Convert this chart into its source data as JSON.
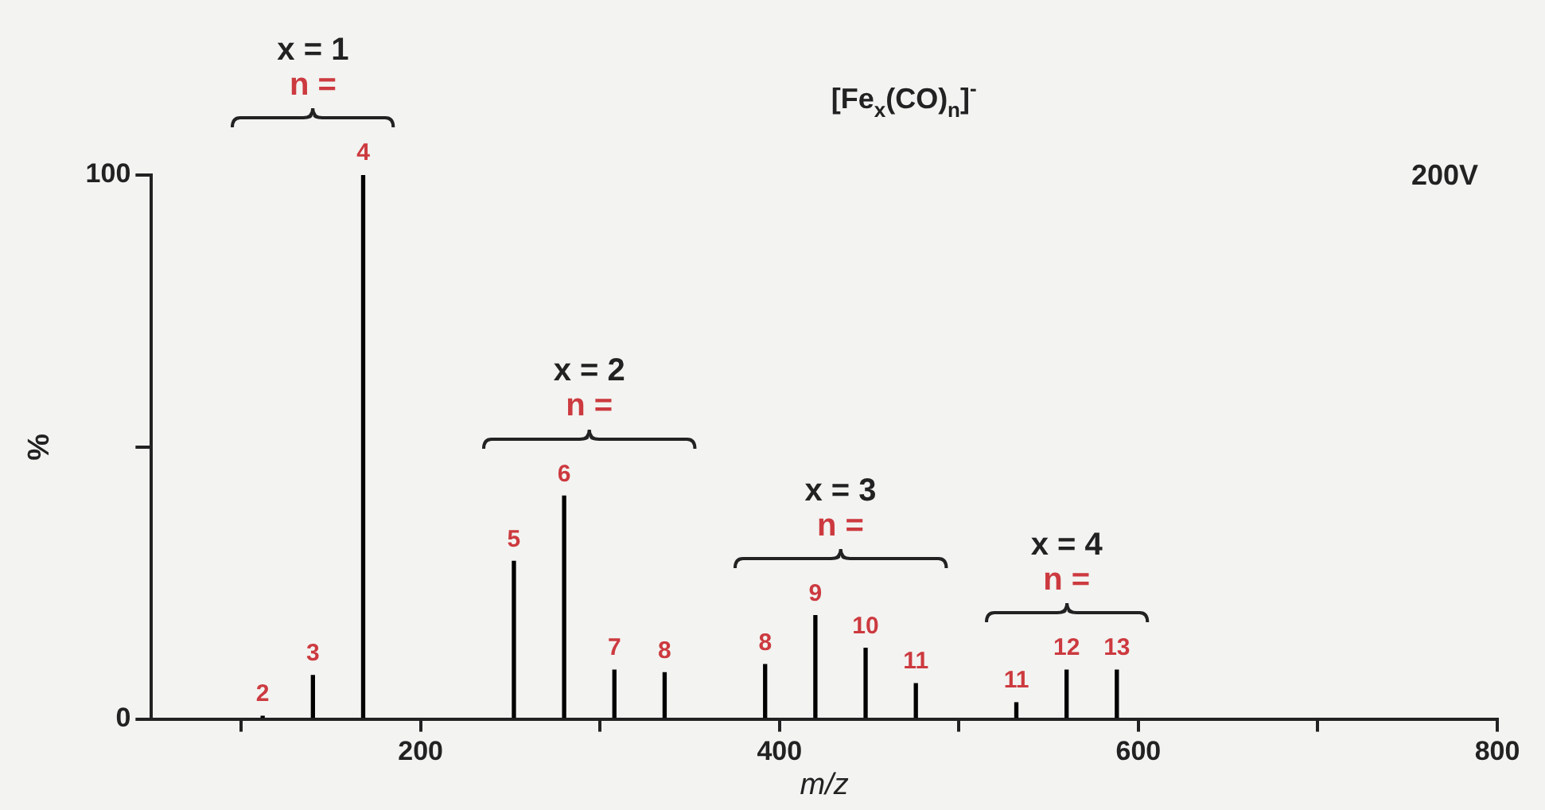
{
  "chart_data": {
    "type": "bar",
    "title": "[Fe$_{x}$(CO)$_{n}$]$^{-}$",
    "xlabel": "m/z",
    "ylabel": "%",
    "x": [
      112,
      140,
      168,
      252,
      280,
      308,
      336,
      392,
      420,
      448,
      476,
      532,
      560,
      588
    ],
    "values": [
      0.5,
      8,
      100,
      29,
      41,
      9,
      8.5,
      10,
      19,
      13,
      6.5,
      3,
      9,
      9
    ],
    "color": "#000000",
    "xlim": [
      50,
      800
    ],
    "xticks": [
      {
        "value": 100,
        "label": null
      },
      200,
      {
        "value": 300,
        "label": null
      },
      400,
      {
        "value": 500,
        "label": null
      },
      600,
      {
        "value": 700,
        "label": null
      },
      800
    ],
    "ylim": [
      0,
      100
    ],
    "yticks": [
      0,
      {
        "value": 50,
        "label": null
      },
      100
    ],
    "grid": false,
    "annotations": [
      "x = 1",
      "n =",
      "x = 2",
      "n =",
      "x = 3",
      "n =",
      "x = 4",
      "n =",
      "200V",
      {
        "text": "2",
        "x": 112,
        "y": 0.5
      },
      {
        "text": "3",
        "x": 140,
        "y": 8
      },
      {
        "text": "4",
        "x": 168,
        "y": 100
      },
      {
        "text": "5",
        "x": 252,
        "y": 29
      },
      {
        "text": "6",
        "x": 280,
        "y": 41
      },
      {
        "text": "7",
        "x": 308,
        "y": 9
      },
      {
        "text": "8",
        "x": 336,
        "y": 8.5
      },
      {
        "text": "8",
        "x": 392,
        "y": 10
      },
      {
        "text": "9",
        "x": 420,
        "y": 19
      },
      {
        "text": "10",
        "x": 448,
        "y": 13
      },
      {
        "text": "11",
        "x": 476,
        "y": 6.5
      },
      {
        "text": "11",
        "x": 532,
        "y": 3
      },
      {
        "text": "12",
        "x": 560,
        "y": 9
      },
      {
        "text": "13",
        "x": 588,
        "y": 9
      }
    ]
  }
}
